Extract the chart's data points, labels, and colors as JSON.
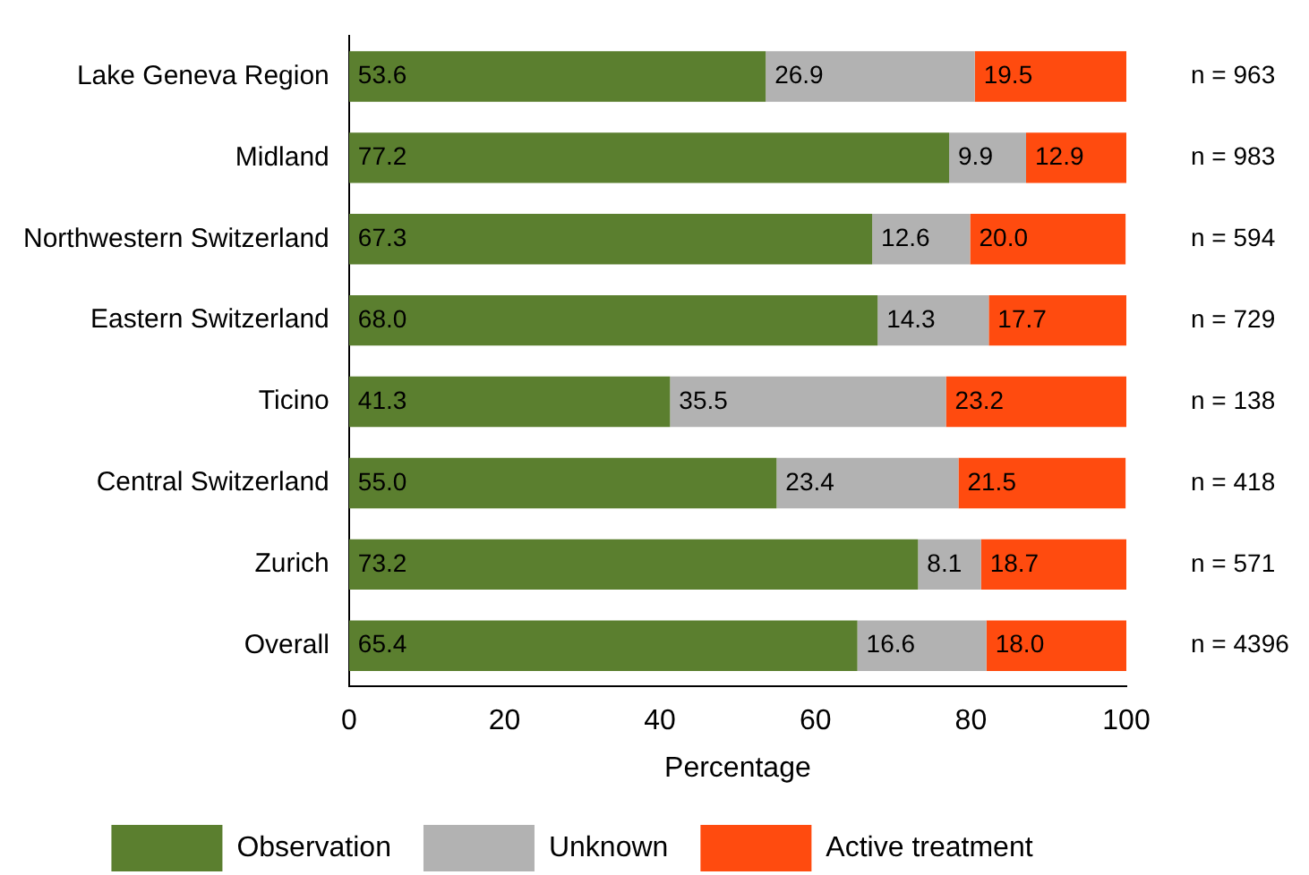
{
  "chart_data": {
    "type": "bar",
    "orientation": "horizontal",
    "stacked": true,
    "xlabel": "Percentage",
    "categories": [
      "Lake Geneva Region",
      "Midland",
      "Northwestern Switzerland",
      "Eastern Switzerland",
      "Ticino",
      "Central Switzerland",
      "Zurich",
      "Overall"
    ],
    "series": [
      {
        "name": "Observation",
        "color": "#5b7f2f",
        "values": [
          53.6,
          77.2,
          67.3,
          68.0,
          41.3,
          55.0,
          73.2,
          65.4
        ],
        "value_labels": [
          "53.6",
          "77.2",
          "67.3",
          "68.0",
          "41.3",
          "55.0",
          "73.2",
          "65.4"
        ]
      },
      {
        "name": "Unknown",
        "color": "#b2b2b2",
        "values": [
          26.9,
          9.9,
          12.6,
          14.3,
          35.5,
          23.4,
          8.1,
          16.6
        ],
        "value_labels": [
          "26.9",
          "9.9",
          "12.6",
          "14.3",
          "35.5",
          "23.4",
          "8.1",
          "16.6"
        ]
      },
      {
        "name": "Active treatment",
        "color": "#ff4b0f",
        "values": [
          19.5,
          12.9,
          20.0,
          17.7,
          23.2,
          21.5,
          18.7,
          18.0
        ],
        "value_labels": [
          "19.5",
          "12.9",
          "20.0",
          "17.7",
          "23.2",
          "21.5",
          "18.7",
          "18.0"
        ]
      }
    ],
    "xlim": [
      0,
      100
    ],
    "xticks": [
      0,
      20,
      40,
      60,
      80,
      100
    ],
    "grid": false,
    "legend": "bottom",
    "annotations": [
      "n = 963",
      "n = 983",
      "n = 594",
      "n = 729",
      "n = 138",
      "n = 418",
      "n = 571",
      "n = 4396"
    ]
  }
}
